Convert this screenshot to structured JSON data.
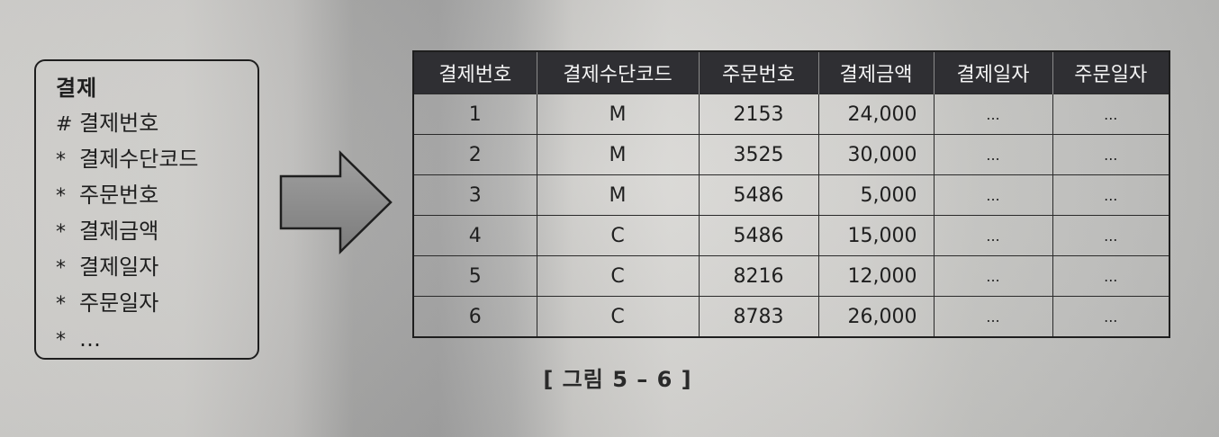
{
  "entity": {
    "title": "결제",
    "attributes": [
      {
        "marker": "#",
        "name": "결제번호"
      },
      {
        "marker": "*",
        "name": "결제수단코드"
      },
      {
        "marker": "*",
        "name": "주문번호"
      },
      {
        "marker": "*",
        "name": "결제금액"
      },
      {
        "marker": "*",
        "name": "결제일자"
      },
      {
        "marker": "*",
        "name": "주문일자"
      },
      {
        "marker": "*",
        "name": "…"
      }
    ]
  },
  "table": {
    "columns": [
      "결제번호",
      "결제수단코드",
      "주문번호",
      "결제금액",
      "결제일자",
      "주문일자"
    ],
    "rows": [
      [
        "1",
        "M",
        "2153",
        "24,000",
        "...",
        "..."
      ],
      [
        "2",
        "M",
        "3525",
        "30,000",
        "...",
        "..."
      ],
      [
        "3",
        "M",
        "5486",
        "5,000",
        "...",
        "..."
      ],
      [
        "4",
        "C",
        "5486",
        "15,000",
        "...",
        "..."
      ],
      [
        "5",
        "C",
        "8216",
        "12,000",
        "...",
        "..."
      ],
      [
        "6",
        "C",
        "8783",
        "26,000",
        "...",
        "..."
      ]
    ]
  },
  "caption": "[ 그림 5 – 6 ]",
  "colors": {
    "header_bg": "#2f2f33",
    "arrow_fill": "#8f8f8f",
    "line": "#1e1e1e"
  }
}
